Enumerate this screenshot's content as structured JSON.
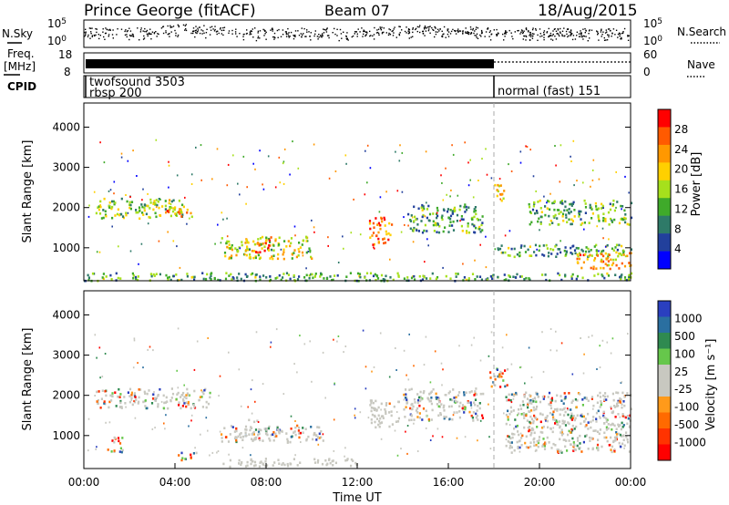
{
  "header": {
    "station": "Prince George (fitACF)",
    "beam": "Beam 07",
    "date": "18/Aug/2015"
  },
  "top_panel": {
    "nsky_label": "N.Sky",
    "nsearch_label": "N.Search",
    "tick_top": "10^5",
    "tick_bottom": "10^0",
    "tick_top_right": "10^5",
    "tick_bottom_right": "10^0",
    "freq_label_1": "Freq.",
    "freq_label_2": "[MHz]",
    "freq_ticks": [
      "18",
      "8"
    ],
    "nave_label": "Nave",
    "nave_ticks": [
      "60",
      "0"
    ],
    "cpid_label": "CPID",
    "cpid_entries": [
      "twofsound 3503",
      "rbsp 200",
      "normal (fast) 151"
    ]
  },
  "chart_data": [
    {
      "type": "heatmap",
      "name": "power",
      "ylabel": "Slant Range [km]",
      "y_ticks": [
        "4000",
        "3000",
        "2000",
        "1000"
      ],
      "ylim": [
        180,
        4600
      ],
      "colorbar_label": "Power [dB]",
      "colorbar_ticks": [
        "28",
        "24",
        "20",
        "16",
        "12",
        "8",
        "4"
      ],
      "colorbar_colors": [
        "#ff0000",
        "#ff5a00",
        "#ff9800",
        "#ffd000",
        "#a6e01c",
        "#3faa2a",
        "#2e7a68",
        "#22409c",
        "#0000ff"
      ],
      "echo_regions": [
        {
          "t0": 0.5,
          "t1": 4.3,
          "r0": 1750,
          "r1": 2250,
          "level": 0.45
        },
        {
          "t0": 3.5,
          "t1": 4.8,
          "r0": 1800,
          "r1": 2100,
          "level": 0.7
        },
        {
          "t0": 6.0,
          "t1": 10.0,
          "r0": 750,
          "r1": 1300,
          "level": 0.55
        },
        {
          "t0": 7.5,
          "t1": 8.2,
          "r0": 900,
          "r1": 1300,
          "level": 0.85
        },
        {
          "t0": 12.5,
          "t1": 13.5,
          "r0": 1100,
          "r1": 1800,
          "level": 0.75
        },
        {
          "t0": 14.2,
          "t1": 17.5,
          "r0": 1400,
          "r1": 2100,
          "level": 0.35
        },
        {
          "t0": 18.0,
          "t1": 24.0,
          "r0": 800,
          "r1": 1100,
          "level": 0.35
        },
        {
          "t0": 18.0,
          "t1": 18.6,
          "r0": 2200,
          "r1": 2600,
          "level": 0.65
        },
        {
          "t0": 19.5,
          "t1": 24.0,
          "r0": 1600,
          "r1": 2200,
          "level": 0.4
        },
        {
          "t0": 21.5,
          "t1": 24.0,
          "r0": 500,
          "r1": 900,
          "level": 0.7
        },
        {
          "t0": 0.0,
          "t1": 24.0,
          "r0": 200,
          "r1": 400,
          "level": 0.35
        }
      ]
    },
    {
      "type": "heatmap",
      "name": "velocity",
      "xlabel": "Time UT",
      "ylabel": "Slant Range [km]",
      "x_ticks": [
        "00:00",
        "04:00",
        "08:00",
        "12:00",
        "16:00",
        "20:00",
        "00:00"
      ],
      "y_ticks": [
        "4000",
        "3000",
        "2000",
        "1000"
      ],
      "ylim": [
        180,
        4600
      ],
      "colorbar_label": "Velocity [m s⁻¹]",
      "colorbar_ticks": [
        "1000",
        "500",
        "100",
        "25",
        "-25",
        "-100",
        "-500",
        "-1000"
      ],
      "colorbar_colors": [
        "#2a3fbf",
        "#2a6fa0",
        "#2f8a50",
        "#66c74b",
        "#c8c8c0",
        "#c8c8c0",
        "#ff9a1a",
        "#ff6a00",
        "#ff3300",
        "#ff0000"
      ],
      "echo_regions": [
        {
          "t0": 0.5,
          "t1": 5.5,
          "r0": 1700,
          "r1": 2200,
          "level": 0.5
        },
        {
          "t0": 6.0,
          "t1": 10.5,
          "r0": 850,
          "r1": 1300,
          "level": 0.5
        },
        {
          "t0": 7.0,
          "t1": 7.6,
          "r0": 950,
          "r1": 1450,
          "level": 0.3
        },
        {
          "t0": 12.5,
          "t1": 13.8,
          "r0": 1200,
          "r1": 1900,
          "level": 0.35
        },
        {
          "t0": 14.0,
          "t1": 17.5,
          "r0": 1400,
          "r1": 2200,
          "level": 0.5
        },
        {
          "t0": 17.8,
          "t1": 18.6,
          "r0": 2200,
          "r1": 2700,
          "level": 0.8
        },
        {
          "t0": 18.5,
          "t1": 24.0,
          "r0": 600,
          "r1": 2100,
          "level": 0.5
        },
        {
          "t0": 1.0,
          "t1": 1.7,
          "r0": 600,
          "r1": 1000,
          "level": 0.85
        },
        {
          "t0": 4.0,
          "t1": 5.0,
          "r0": 400,
          "r1": 600,
          "level": 0.85
        },
        {
          "t0": 6.0,
          "t1": 12.0,
          "r0": 250,
          "r1": 450,
          "level": 0.15
        }
      ]
    }
  ]
}
